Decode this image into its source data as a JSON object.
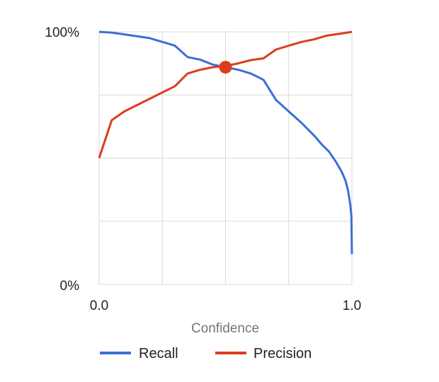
{
  "chart_data": {
    "type": "line",
    "xlabel": "Confidence",
    "ylabel": "",
    "xlim": [
      0,
      1
    ],
    "ylim": [
      0,
      100
    ],
    "x_ticks": [
      "0.0",
      "1.0"
    ],
    "y_ticks": [
      "0%",
      "100%"
    ],
    "grid": true,
    "legend_position": "bottom",
    "series": [
      {
        "name": "Recall",
        "color": "#3c6fd4",
        "points": [
          [
            0.0,
            100
          ],
          [
            0.05,
            99.7
          ],
          [
            0.1,
            99
          ],
          [
            0.2,
            97.5
          ],
          [
            0.3,
            94.5
          ],
          [
            0.35,
            90
          ],
          [
            0.4,
            89
          ],
          [
            0.45,
            87
          ],
          [
            0.5,
            86
          ],
          [
            0.55,
            85
          ],
          [
            0.6,
            83.5
          ],
          [
            0.65,
            81
          ],
          [
            0.7,
            73
          ],
          [
            0.75,
            68.5
          ],
          [
            0.8,
            64
          ],
          [
            0.85,
            59
          ],
          [
            0.88,
            55.5
          ],
          [
            0.91,
            52.5
          ],
          [
            0.94,
            48
          ],
          [
            0.96,
            44.5
          ],
          [
            0.975,
            41
          ],
          [
            0.985,
            37
          ],
          [
            0.993,
            32
          ],
          [
            0.998,
            27
          ],
          [
            1.0,
            12
          ]
        ]
      },
      {
        "name": "Precision",
        "color": "#dc3d1c",
        "points": [
          [
            0.0,
            50
          ],
          [
            0.05,
            65
          ],
          [
            0.1,
            68.5
          ],
          [
            0.15,
            71
          ],
          [
            0.2,
            73.5
          ],
          [
            0.25,
            76
          ],
          [
            0.3,
            78.5
          ],
          [
            0.35,
            83.5
          ],
          [
            0.4,
            85
          ],
          [
            0.45,
            86
          ],
          [
            0.5,
            86.5
          ],
          [
            0.55,
            87.5
          ],
          [
            0.6,
            88.8
          ],
          [
            0.65,
            89.5
          ],
          [
            0.7,
            93
          ],
          [
            0.75,
            94.5
          ],
          [
            0.8,
            96
          ],
          [
            0.85,
            97
          ],
          [
            0.9,
            98.5
          ],
          [
            0.95,
            99.2
          ],
          [
            1.0,
            100
          ]
        ]
      }
    ],
    "highlight": {
      "x": 0.5,
      "y": 86,
      "color": "#dc3d1c"
    }
  }
}
